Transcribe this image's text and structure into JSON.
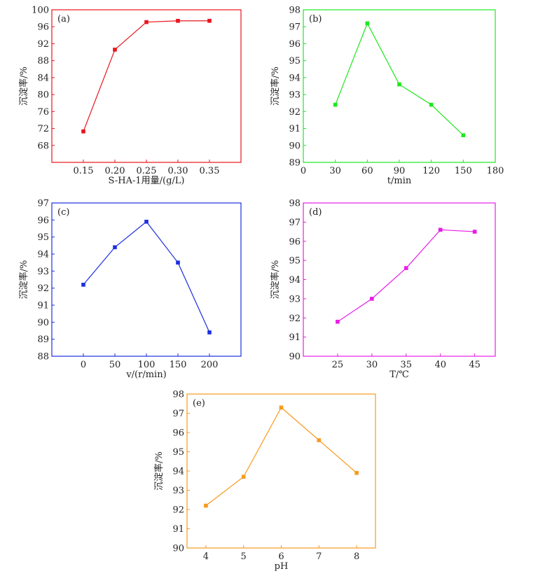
{
  "chart_data": [
    {
      "id": "a",
      "type": "line",
      "panel_label": "(a)",
      "color": "#e8141c",
      "xlabel": "S-HA-1用量/(g/L)",
      "ylabel": "沉淀率/%",
      "xlim": [
        0.1,
        0.4
      ],
      "ylim": [
        64,
        100
      ],
      "xticks": [
        0.15,
        0.2,
        0.25,
        0.3,
        0.35
      ],
      "xtick_labels": [
        "0.15",
        "0.20",
        "0.25",
        "0.30",
        "0.35"
      ],
      "yticks": [
        68,
        72,
        76,
        80,
        84,
        88,
        92,
        96,
        100
      ],
      "ytick_labels": [
        "68",
        "72",
        "76",
        "80",
        "84",
        "88",
        "92",
        "96",
        "100"
      ],
      "x": [
        0.15,
        0.2,
        0.25,
        0.3,
        0.35
      ],
      "y": [
        71.3,
        90.6,
        97.1,
        97.4,
        97.4
      ]
    },
    {
      "id": "b",
      "type": "line",
      "panel_label": "(b)",
      "color": "#1ee81e",
      "xlabel": "t/min",
      "ylabel": "沉淀率/%",
      "xlim": [
        0,
        180
      ],
      "ylim": [
        89,
        98
      ],
      "xticks": [
        0,
        30,
        60,
        90,
        120,
        150,
        180
      ],
      "xtick_labels": [
        "0",
        "30",
        "60",
        "90",
        "120",
        "150",
        "180"
      ],
      "yticks": [
        89,
        90,
        91,
        92,
        93,
        94,
        95,
        96,
        97,
        98
      ],
      "ytick_labels": [
        "89",
        "90",
        "91",
        "92",
        "93",
        "94",
        "95",
        "96",
        "97",
        "98"
      ],
      "x": [
        30,
        60,
        90,
        120,
        150
      ],
      "y": [
        92.4,
        97.2,
        93.6,
        92.4,
        90.6
      ]
    },
    {
      "id": "c",
      "type": "line",
      "panel_label": "(c)",
      "color": "#1c2ee0",
      "xlabel": "v/(r/min)",
      "ylabel": "沉淀率/%",
      "xlim": [
        -50,
        250
      ],
      "ylim": [
        88,
        97
      ],
      "xticks": [
        0,
        50,
        100,
        150,
        200
      ],
      "xtick_labels": [
        "0",
        "50",
        "100",
        "150",
        "200"
      ],
      "yticks": [
        88,
        89,
        90,
        91,
        92,
        93,
        94,
        95,
        96,
        97
      ],
      "ytick_labels": [
        "88",
        "89",
        "90",
        "91",
        "92",
        "93",
        "94",
        "95",
        "96",
        "97"
      ],
      "x": [
        0,
        50,
        100,
        150,
        200
      ],
      "y": [
        92.2,
        94.4,
        95.9,
        93.5,
        89.4
      ]
    },
    {
      "id": "d",
      "type": "line",
      "panel_label": "(d)",
      "color": "#e61ee6",
      "xlabel": "T/℃",
      "ylabel": "沉淀率/%",
      "xlim": [
        20,
        48
      ],
      "ylim": [
        90,
        98
      ],
      "xticks": [
        25,
        30,
        35,
        40,
        45
      ],
      "xtick_labels": [
        "25",
        "30",
        "35",
        "40",
        "45"
      ],
      "yticks": [
        90,
        91,
        92,
        93,
        94,
        95,
        96,
        97,
        98
      ],
      "ytick_labels": [
        "90",
        "91",
        "92",
        "93",
        "94",
        "95",
        "96",
        "97",
        "98"
      ],
      "x": [
        25,
        30,
        35,
        40,
        45
      ],
      "y": [
        91.8,
        93.0,
        94.6,
        96.6,
        96.5
      ]
    },
    {
      "id": "e",
      "type": "line",
      "panel_label": "(e)",
      "color": "#f79a1e",
      "xlabel": "pH",
      "ylabel": "沉淀率/%",
      "xlim": [
        3.5,
        8.5
      ],
      "ylim": [
        90,
        98
      ],
      "xticks": [
        4,
        5,
        6,
        7,
        8
      ],
      "xtick_labels": [
        "4",
        "5",
        "6",
        "7",
        "8"
      ],
      "yticks": [
        90,
        91,
        92,
        93,
        94,
        95,
        96,
        97,
        98
      ],
      "ytick_labels": [
        "90",
        "91",
        "92",
        "93",
        "94",
        "95",
        "96",
        "97",
        "98"
      ],
      "x": [
        4,
        5,
        6,
        7,
        8
      ],
      "y": [
        92.2,
        93.7,
        97.3,
        95.6,
        93.9
      ]
    }
  ]
}
